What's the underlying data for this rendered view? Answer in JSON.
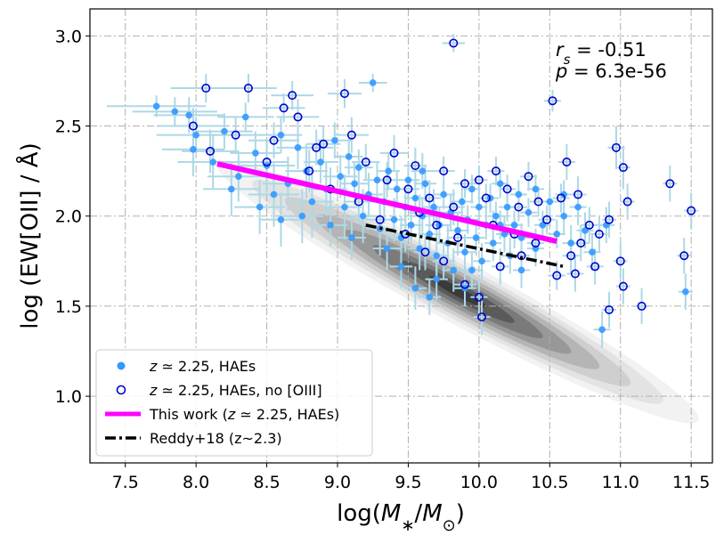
{
  "chart_data": {
    "type": "scatter",
    "xlabel": "log(M∗/M⊙)",
    "ylabel": "log (EW[OII] / Å)",
    "xlim": [
      7.25,
      11.65
    ],
    "ylim": [
      0.63,
      3.15
    ],
    "xticks": [
      "7.5",
      "8.0",
      "8.5",
      "9.0",
      "9.5",
      "10.0",
      "10.5",
      "11.0",
      "11.5"
    ],
    "yticks": [
      "1.0",
      "1.5",
      "2.0",
      "2.5",
      "3.0"
    ],
    "grid": true,
    "legend_position": "lower-left",
    "legend": [
      {
        "label": "z ≃ 2.25, HAEs",
        "marker": "filled-circle",
        "color": "#3399ff"
      },
      {
        "label": "z ≃ 2.25, HAEs, no [OIII]",
        "marker": "open-circle",
        "color": "#0000cc"
      },
      {
        "label": "This work (z ≃ 2.25, HAEs)",
        "marker": "line",
        "color": "#ff00ff"
      },
      {
        "label": "Reddy+18 (z~2.3)",
        "marker": "dash-dot-line",
        "color": "#000000"
      }
    ],
    "annotations": {
      "rs_label": "r",
      "rs_sub": "s",
      "rs_value": " = -0.51",
      "p_label": "p",
      "p_value": " = 6.3e-56"
    },
    "this_work_fit": {
      "x": [
        8.15,
        10.55
      ],
      "y": [
        2.29,
        1.86
      ],
      "color": "#ff00ff"
    },
    "reddy18_fit": {
      "x": [
        9.2,
        10.6
      ],
      "y": [
        1.95,
        1.72
      ],
      "color": "#000000"
    },
    "contours": {
      "center": [
        9.85,
        1.58
      ],
      "slope": -0.42,
      "levels": [
        {
          "half_width": 1.7,
          "half_height": 0.17,
          "color": "#f2f2f2"
        },
        {
          "half_width": 1.45,
          "half_height": 0.145,
          "color": "#e3e3e3"
        },
        {
          "half_width": 1.22,
          "half_height": 0.125,
          "color": "#cfcfcf"
        },
        {
          "half_width": 1.0,
          "half_height": 0.105,
          "color": "#b5b5b5"
        },
        {
          "half_width": 0.8,
          "half_height": 0.085,
          "color": "#989898"
        },
        {
          "half_width": 0.6,
          "half_height": 0.065,
          "color": "#7a7a7a"
        },
        {
          "half_width": 0.4,
          "half_height": 0.045,
          "color": "#5a5a5a"
        },
        {
          "half_width": 0.2,
          "half_height": 0.025,
          "color": "#3a3a3a"
        }
      ]
    },
    "series": [
      {
        "name": "z ≃ 2.25, HAEs",
        "marker": "filled",
        "color": "#3399ff",
        "errorbar_color": "#add8e6",
        "points": [
          [
            7.72,
            2.61,
            0.35,
            0.06
          ],
          [
            7.85,
            2.58,
            0.3,
            0.08
          ],
          [
            7.95,
            2.56,
            0.25,
            0.1
          ],
          [
            8.0,
            2.45,
            0.28,
            0.1
          ],
          [
            7.98,
            2.37,
            0.22,
            0.15
          ],
          [
            8.12,
            2.3,
            0.25,
            0.15
          ],
          [
            8.2,
            2.47,
            0.2,
            0.1
          ],
          [
            8.3,
            2.22,
            0.22,
            0.14
          ],
          [
            8.35,
            2.55,
            0.2,
            0.08
          ],
          [
            8.42,
            2.35,
            0.18,
            0.12
          ],
          [
            8.5,
            2.28,
            0.2,
            0.15
          ],
          [
            8.55,
            2.12,
            0.18,
            0.18
          ],
          [
            8.6,
            2.45,
            0.15,
            0.1
          ],
          [
            8.65,
            2.18,
            0.18,
            0.15
          ],
          [
            8.72,
            2.38,
            0.15,
            0.12
          ],
          [
            8.78,
            2.25,
            0.15,
            0.15
          ],
          [
            8.82,
            2.08,
            0.15,
            0.2
          ],
          [
            8.88,
            2.3,
            0.12,
            0.12
          ],
          [
            8.92,
            2.15,
            0.12,
            0.15
          ],
          [
            8.98,
            2.42,
            0.12,
            0.1
          ],
          [
            9.02,
            2.22,
            0.12,
            0.12
          ],
          [
            9.05,
            2.05,
            0.12,
            0.18
          ],
          [
            9.08,
            2.33,
            0.1,
            0.1
          ],
          [
            9.12,
            2.18,
            0.1,
            0.12
          ],
          [
            9.15,
            2.27,
            0.1,
            0.1
          ],
          [
            9.18,
            2.0,
            0.1,
            0.15
          ],
          [
            9.22,
            2.12,
            0.1,
            0.12
          ],
          [
            9.25,
            2.74,
            0.1,
            0.05
          ],
          [
            9.28,
            2.2,
            0.1,
            0.1
          ],
          [
            9.3,
            1.93,
            0.1,
            0.15
          ],
          [
            9.33,
            2.08,
            0.1,
            0.12
          ],
          [
            9.36,
            2.25,
            0.08,
            0.1
          ],
          [
            9.4,
            1.98,
            0.08,
            0.12
          ],
          [
            9.42,
            2.15,
            0.08,
            0.1
          ],
          [
            9.45,
            1.88,
            0.08,
            0.12
          ],
          [
            9.48,
            2.05,
            0.08,
            0.1
          ],
          [
            9.5,
            2.2,
            0.08,
            0.1
          ],
          [
            9.52,
            1.95,
            0.08,
            0.1
          ],
          [
            9.55,
            2.1,
            0.08,
            0.1
          ],
          [
            9.58,
            1.82,
            0.08,
            0.12
          ],
          [
            9.6,
            2.0,
            0.08,
            0.1
          ],
          [
            9.62,
            2.18,
            0.08,
            0.1
          ],
          [
            9.65,
            1.9,
            0.08,
            0.1
          ],
          [
            9.68,
            2.05,
            0.08,
            0.1
          ],
          [
            9.7,
            1.78,
            0.08,
            0.12
          ],
          [
            9.72,
            1.95,
            0.08,
            0.1
          ],
          [
            9.75,
            2.12,
            0.08,
            0.08
          ],
          [
            9.78,
            1.85,
            0.08,
            0.1
          ],
          [
            9.8,
            2.02,
            0.08,
            0.1
          ],
          [
            9.82,
            1.7,
            0.08,
            0.12
          ],
          [
            9.85,
            1.92,
            0.08,
            0.1
          ],
          [
            9.88,
            2.08,
            0.08,
            0.08
          ],
          [
            9.9,
            1.8,
            0.08,
            0.1
          ],
          [
            9.92,
            1.98,
            0.08,
            0.08
          ],
          [
            9.95,
            2.15,
            0.06,
            0.08
          ],
          [
            9.98,
            1.88,
            0.06,
            0.1
          ],
          [
            10.0,
            2.05,
            0.06,
            0.08
          ],
          [
            10.02,
            1.75,
            0.06,
            0.1
          ],
          [
            10.05,
            1.95,
            0.06,
            0.08
          ],
          [
            10.08,
            2.1,
            0.06,
            0.08
          ],
          [
            10.1,
            1.85,
            0.06,
            0.1
          ],
          [
            10.12,
            2.0,
            0.06,
            0.08
          ],
          [
            10.15,
            2.18,
            0.06,
            0.08
          ],
          [
            10.18,
            1.9,
            0.06,
            0.1
          ],
          [
            10.2,
            2.05,
            0.06,
            0.08
          ],
          [
            10.22,
            1.78,
            0.06,
            0.1
          ],
          [
            10.25,
            1.95,
            0.06,
            0.08
          ],
          [
            10.28,
            2.12,
            0.06,
            0.08
          ],
          [
            10.3,
            1.88,
            0.06,
            0.08
          ],
          [
            10.35,
            2.02,
            0.06,
            0.08
          ],
          [
            10.4,
            1.82,
            0.06,
            0.1
          ],
          [
            10.45,
            1.95,
            0.06,
            0.08
          ],
          [
            10.5,
            2.08,
            0.06,
            0.08
          ],
          [
            10.55,
            1.9,
            0.06,
            0.08
          ],
          [
            10.6,
            2.0,
            0.06,
            0.1
          ],
          [
            10.65,
            1.85,
            0.06,
            0.1
          ],
          [
            10.7,
            2.05,
            0.06,
            0.1
          ],
          [
            10.75,
            1.92,
            0.06,
            0.1
          ],
          [
            10.8,
            1.8,
            0.06,
            0.1
          ],
          [
            10.9,
            1.95,
            0.06,
            0.1
          ],
          [
            10.87,
            1.37,
            0.06,
            0.1
          ],
          [
            11.46,
            1.58,
            0.05,
            0.1
          ],
          [
            9.55,
            1.6,
            0.08,
            0.12
          ],
          [
            9.65,
            1.55,
            0.08,
            0.1
          ],
          [
            9.9,
            1.6,
            0.08,
            0.1
          ],
          [
            10.3,
            1.7,
            0.06,
            0.1
          ],
          [
            9.7,
            1.65,
            0.08,
            0.12
          ],
          [
            9.95,
            1.7,
            0.08,
            0.1
          ],
          [
            8.95,
            1.95,
            0.12,
            0.12
          ],
          [
            9.1,
            1.88,
            0.1,
            0.12
          ],
          [
            9.35,
            1.82,
            0.1,
            0.12
          ],
          [
            9.45,
            1.72,
            0.08,
            0.12
          ],
          [
            8.75,
            2.0,
            0.15,
            0.15
          ],
          [
            8.6,
            1.98,
            0.15,
            0.15
          ],
          [
            8.45,
            2.05,
            0.18,
            0.15
          ],
          [
            8.25,
            2.15,
            0.2,
            0.15
          ],
          [
            10.4,
            2.15,
            0.06,
            0.08
          ],
          [
            10.6,
            2.12,
            0.06,
            0.08
          ],
          [
            10.15,
            1.95,
            0.06,
            0.08
          ],
          [
            9.6,
            2.25,
            0.08,
            0.1
          ]
        ]
      },
      {
        "name": "z ≃ 2.25, HAEs, no [OIII]",
        "marker": "open",
        "color": "#0000cc",
        "errorbar_color": "#add8e6",
        "points": [
          [
            8.07,
            2.71,
            0.25,
            0.08
          ],
          [
            8.37,
            2.71,
            0.2,
            0.08
          ],
          [
            9.05,
            2.68,
            0.12,
            0.08
          ],
          [
            9.82,
            2.96,
            0.08,
            0.05
          ],
          [
            10.52,
            2.64,
            0.06,
            0.06
          ],
          [
            7.98,
            2.5,
            0.25,
            0.1
          ],
          [
            8.1,
            2.36,
            0.2,
            0.12
          ],
          [
            8.55,
            2.42,
            0.18,
            0.1
          ],
          [
            8.68,
            2.67,
            0.15,
            0.08
          ],
          [
            8.62,
            2.6,
            0.15,
            0.08
          ],
          [
            8.85,
            2.38,
            0.12,
            0.1
          ],
          [
            9.1,
            2.45,
            0.12,
            0.1
          ],
          [
            9.2,
            2.3,
            0.1,
            0.1
          ],
          [
            9.35,
            2.2,
            0.1,
            0.1
          ],
          [
            9.4,
            2.35,
            0.1,
            0.1
          ],
          [
            9.5,
            2.15,
            0.08,
            0.1
          ],
          [
            9.55,
            2.28,
            0.08,
            0.1
          ],
          [
            9.65,
            2.1,
            0.08,
            0.1
          ],
          [
            9.75,
            2.25,
            0.08,
            0.08
          ],
          [
            9.82,
            2.05,
            0.08,
            0.1
          ],
          [
            9.9,
            2.18,
            0.08,
            0.08
          ],
          [
            10.0,
            2.2,
            0.06,
            0.08
          ],
          [
            10.05,
            2.1,
            0.06,
            0.08
          ],
          [
            10.12,
            2.25,
            0.06,
            0.08
          ],
          [
            10.2,
            2.15,
            0.06,
            0.08
          ],
          [
            10.28,
            2.05,
            0.06,
            0.08
          ],
          [
            10.35,
            2.22,
            0.06,
            0.08
          ],
          [
            10.42,
            2.08,
            0.06,
            0.08
          ],
          [
            10.48,
            1.98,
            0.06,
            0.08
          ],
          [
            10.58,
            2.1,
            0.06,
            0.08
          ],
          [
            10.62,
            2.3,
            0.06,
            0.1
          ],
          [
            10.7,
            2.12,
            0.06,
            0.1
          ],
          [
            10.72,
            1.85,
            0.06,
            0.1
          ],
          [
            10.78,
            1.95,
            0.06,
            0.1
          ],
          [
            10.85,
            1.9,
            0.06,
            0.1
          ],
          [
            10.97,
            2.38,
            0.06,
            0.12
          ],
          [
            11.02,
            2.27,
            0.05,
            0.12
          ],
          [
            11.05,
            2.08,
            0.05,
            0.1
          ],
          [
            11.0,
            1.75,
            0.05,
            0.1
          ],
          [
            11.02,
            1.61,
            0.05,
            0.1
          ],
          [
            10.92,
            1.48,
            0.05,
            0.1
          ],
          [
            11.15,
            1.5,
            0.05,
            0.1
          ],
          [
            11.35,
            2.18,
            0.05,
            0.1
          ],
          [
            11.45,
            1.78,
            0.05,
            0.1
          ],
          [
            11.5,
            2.03,
            0.05,
            0.1
          ],
          [
            10.92,
            1.98,
            0.05,
            0.1
          ],
          [
            10.68,
            1.68,
            0.06,
            0.1
          ],
          [
            10.55,
            1.67,
            0.06,
            0.08
          ],
          [
            10.3,
            1.78,
            0.06,
            0.08
          ],
          [
            10.15,
            1.72,
            0.06,
            0.1
          ],
          [
            10.0,
            1.55,
            0.06,
            0.1
          ],
          [
            10.02,
            1.44,
            0.06,
            0.1
          ],
          [
            9.9,
            1.62,
            0.08,
            0.1
          ],
          [
            9.75,
            1.75,
            0.08,
            0.1
          ],
          [
            9.62,
            1.8,
            0.08,
            0.1
          ],
          [
            9.48,
            1.9,
            0.08,
            0.1
          ],
          [
            9.3,
            1.98,
            0.1,
            0.1
          ],
          [
            9.15,
            2.08,
            0.1,
            0.12
          ],
          [
            8.95,
            2.15,
            0.12,
            0.12
          ],
          [
            8.8,
            2.25,
            0.12,
            0.12
          ],
          [
            8.72,
            2.55,
            0.15,
            0.1
          ],
          [
            8.5,
            2.3,
            0.15,
            0.12
          ],
          [
            8.28,
            2.45,
            0.2,
            0.1
          ],
          [
            8.9,
            2.4,
            0.12,
            0.1
          ],
          [
            9.58,
            2.02,
            0.08,
            0.1
          ],
          [
            9.7,
            1.95,
            0.08,
            0.1
          ],
          [
            9.85,
            1.88,
            0.08,
            0.1
          ],
          [
            10.1,
            1.95,
            0.06,
            0.08
          ],
          [
            10.25,
            1.9,
            0.06,
            0.08
          ],
          [
            10.4,
            1.85,
            0.06,
            0.08
          ],
          [
            10.65,
            1.78,
            0.06,
            0.1
          ],
          [
            10.82,
            1.72,
            0.06,
            0.1
          ]
        ]
      }
    ]
  }
}
